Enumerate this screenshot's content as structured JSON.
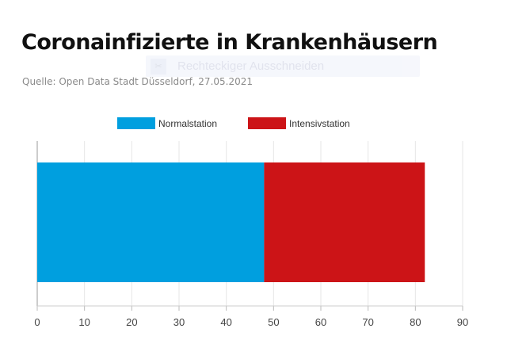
{
  "toolbar_overlay": {
    "label": "Rechteckiger Ausschneiden",
    "icon": "scissors-icon"
  },
  "chart_data": {
    "type": "bar",
    "orientation": "horizontal",
    "stacked": true,
    "title": "Coronainfizierte in Krankenhäusern",
    "subtitle": "Quelle: Open Data Stadt Düsseldorf, 27.05.2021",
    "categories": [
      ""
    ],
    "series": [
      {
        "name": "Normalstation",
        "values": [
          48
        ],
        "color": "#009fdf"
      },
      {
        "name": "Intensivstation",
        "values": [
          34
        ],
        "color": "#cc1417"
      }
    ],
    "xlim": [
      0,
      90
    ],
    "x_ticks": [
      "0",
      "10",
      "20",
      "30",
      "40",
      "50",
      "60",
      "70",
      "80",
      "90"
    ],
    "grid": true,
    "legend_position": "top-center"
  }
}
